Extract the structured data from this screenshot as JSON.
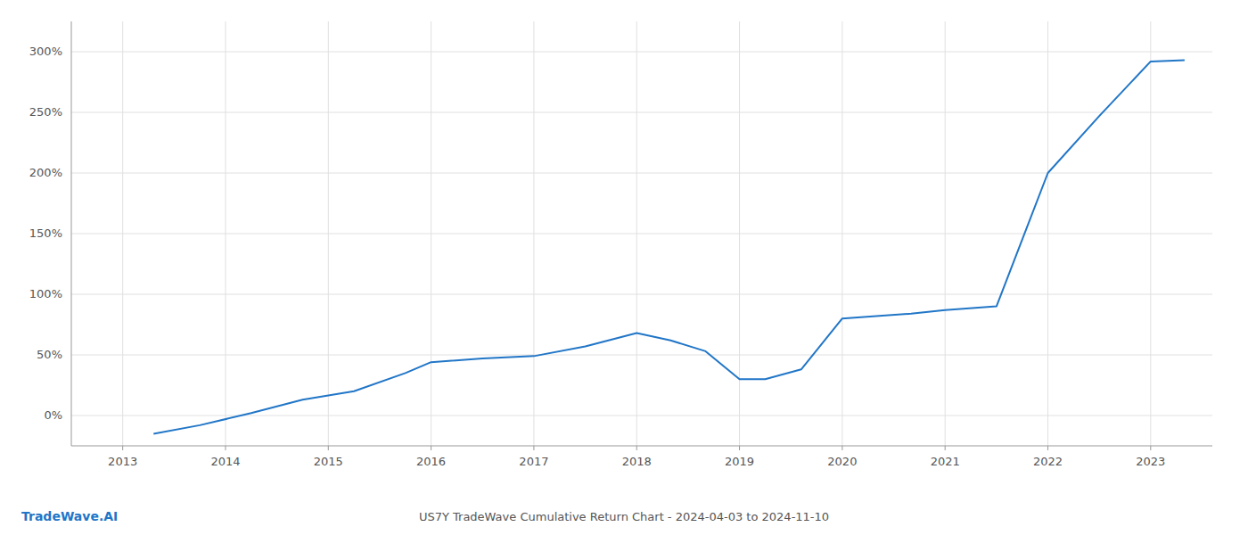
{
  "chart_data": {
    "type": "line",
    "title": "US7Y TradeWave Cumulative Return Chart - 2024-04-03 to 2024-11-10",
    "annotations": [
      "TradeWave.AI"
    ],
    "x": [
      2013.3,
      2013.75,
      2014.25,
      2014.75,
      2015.25,
      2015.75,
      2016.0,
      2016.5,
      2017.0,
      2017.5,
      2018.0,
      2018.33,
      2018.67,
      2019.0,
      2019.25,
      2019.6,
      2020.0,
      2020.33,
      2020.67,
      2021.0,
      2021.5,
      2022.0,
      2022.5,
      2023.0,
      2023.33
    ],
    "values": [
      -15,
      -8,
      2,
      13,
      20,
      35,
      44,
      47,
      49,
      57,
      68,
      62,
      53,
      30,
      30,
      38,
      80,
      82,
      84,
      87,
      90,
      200,
      247,
      292,
      293
    ],
    "color": "#2176c7",
    "xlim": [
      2012.5,
      2023.6
    ],
    "ylim": [
      -25,
      325
    ],
    "xticks": [
      2013,
      2014,
      2015,
      2016,
      2017,
      2018,
      2019,
      2020,
      2021,
      2022,
      2023
    ],
    "yticks": [
      {
        "value": 0,
        "label": "0%"
      },
      {
        "value": 50,
        "label": "50%"
      },
      {
        "value": 100,
        "label": "100%"
      },
      {
        "value": 150,
        "label": "150%"
      },
      {
        "value": 200,
        "label": "200%"
      },
      {
        "value": 250,
        "label": "250%"
      },
      {
        "value": 300,
        "label": "300%"
      }
    ],
    "grid": true
  }
}
